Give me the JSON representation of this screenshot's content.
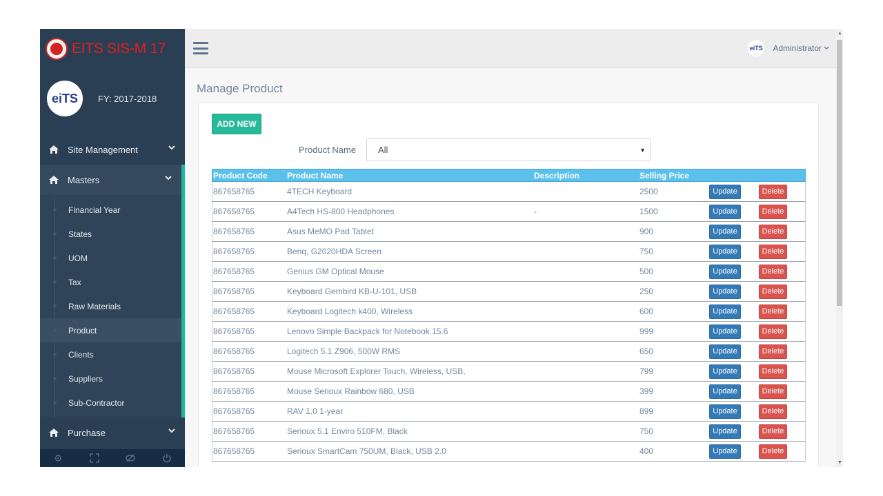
{
  "app": {
    "title": "EITS SIS-M 17"
  },
  "profile": {
    "logo_text": "eiTS",
    "fy": "FY: 2017-2018"
  },
  "sidebar": {
    "site_management": "Site Management",
    "masters": "Masters",
    "purchase": "Purchase",
    "submenu": [
      "Financial Year",
      "States",
      "UOM",
      "Tax",
      "Raw Materials",
      "Product",
      "Clients",
      "Suppliers",
      "Sub-Contractor"
    ]
  },
  "topnav": {
    "user_label": "Administrator",
    "avatar_text": "eiTS"
  },
  "page": {
    "title": "Manage Product",
    "add_new": "ADD NEW",
    "filter_label": "Product Name",
    "filter_value": "All"
  },
  "table": {
    "headers": {
      "code": "Product Code",
      "name": "Product Name",
      "desc": "Description",
      "price": "Selling Price"
    },
    "update_label": "Update",
    "delete_label": "Delete",
    "rows": [
      {
        "code": "867658765",
        "name": "4TECH Keyboard",
        "desc": "",
        "price": "2500"
      },
      {
        "code": "867658765",
        "name": "A4Tech HS-800 Headphones",
        "desc": "-",
        "price": "1500"
      },
      {
        "code": "867658765",
        "name": "Asus MeMO Pad Tablet",
        "desc": "",
        "price": "900"
      },
      {
        "code": "867658765",
        "name": "Benq, G2020HDA Screen",
        "desc": "",
        "price": "750"
      },
      {
        "code": "867658765",
        "name": "Genius GM Optical Mouse",
        "desc": "",
        "price": "500"
      },
      {
        "code": "867658765",
        "name": "Keyboard Gembird KB-U-101, USB",
        "desc": "",
        "price": "250"
      },
      {
        "code": "867658765",
        "name": "Keyboard Logitech k400, Wireless",
        "desc": "",
        "price": "600"
      },
      {
        "code": "867658765",
        "name": "Lenovo Simple Backpack for Notebook 15.6",
        "desc": "",
        "price": "999"
      },
      {
        "code": "867658765",
        "name": "Logitech 5.1 Z906, 500W RMS",
        "desc": "",
        "price": "650"
      },
      {
        "code": "867658765",
        "name": "Mouse Microsoft Explorer Touch, Wireless, USB,",
        "desc": "",
        "price": "799"
      },
      {
        "code": "867658765",
        "name": "Mouse Serioux Rainbow 680, USB",
        "desc": "",
        "price": "399"
      },
      {
        "code": "867658765",
        "name": "RAV 1.0 1-year",
        "desc": "",
        "price": "899"
      },
      {
        "code": "867658765",
        "name": "Serioux 5.1 Enviro 510FM, Black",
        "desc": "",
        "price": "750"
      },
      {
        "code": "867658765",
        "name": "Serioux SmartCam 750UM, Black, USB 2.0",
        "desc": "",
        "price": "400"
      }
    ]
  },
  "colors": {
    "sidebar_bg": "#2a3f54",
    "accent_green": "#26b99a",
    "table_header": "#5bc0eb",
    "update_blue": "#337ab7",
    "delete_red": "#d9534f",
    "brand_red": "#e11e1e"
  }
}
